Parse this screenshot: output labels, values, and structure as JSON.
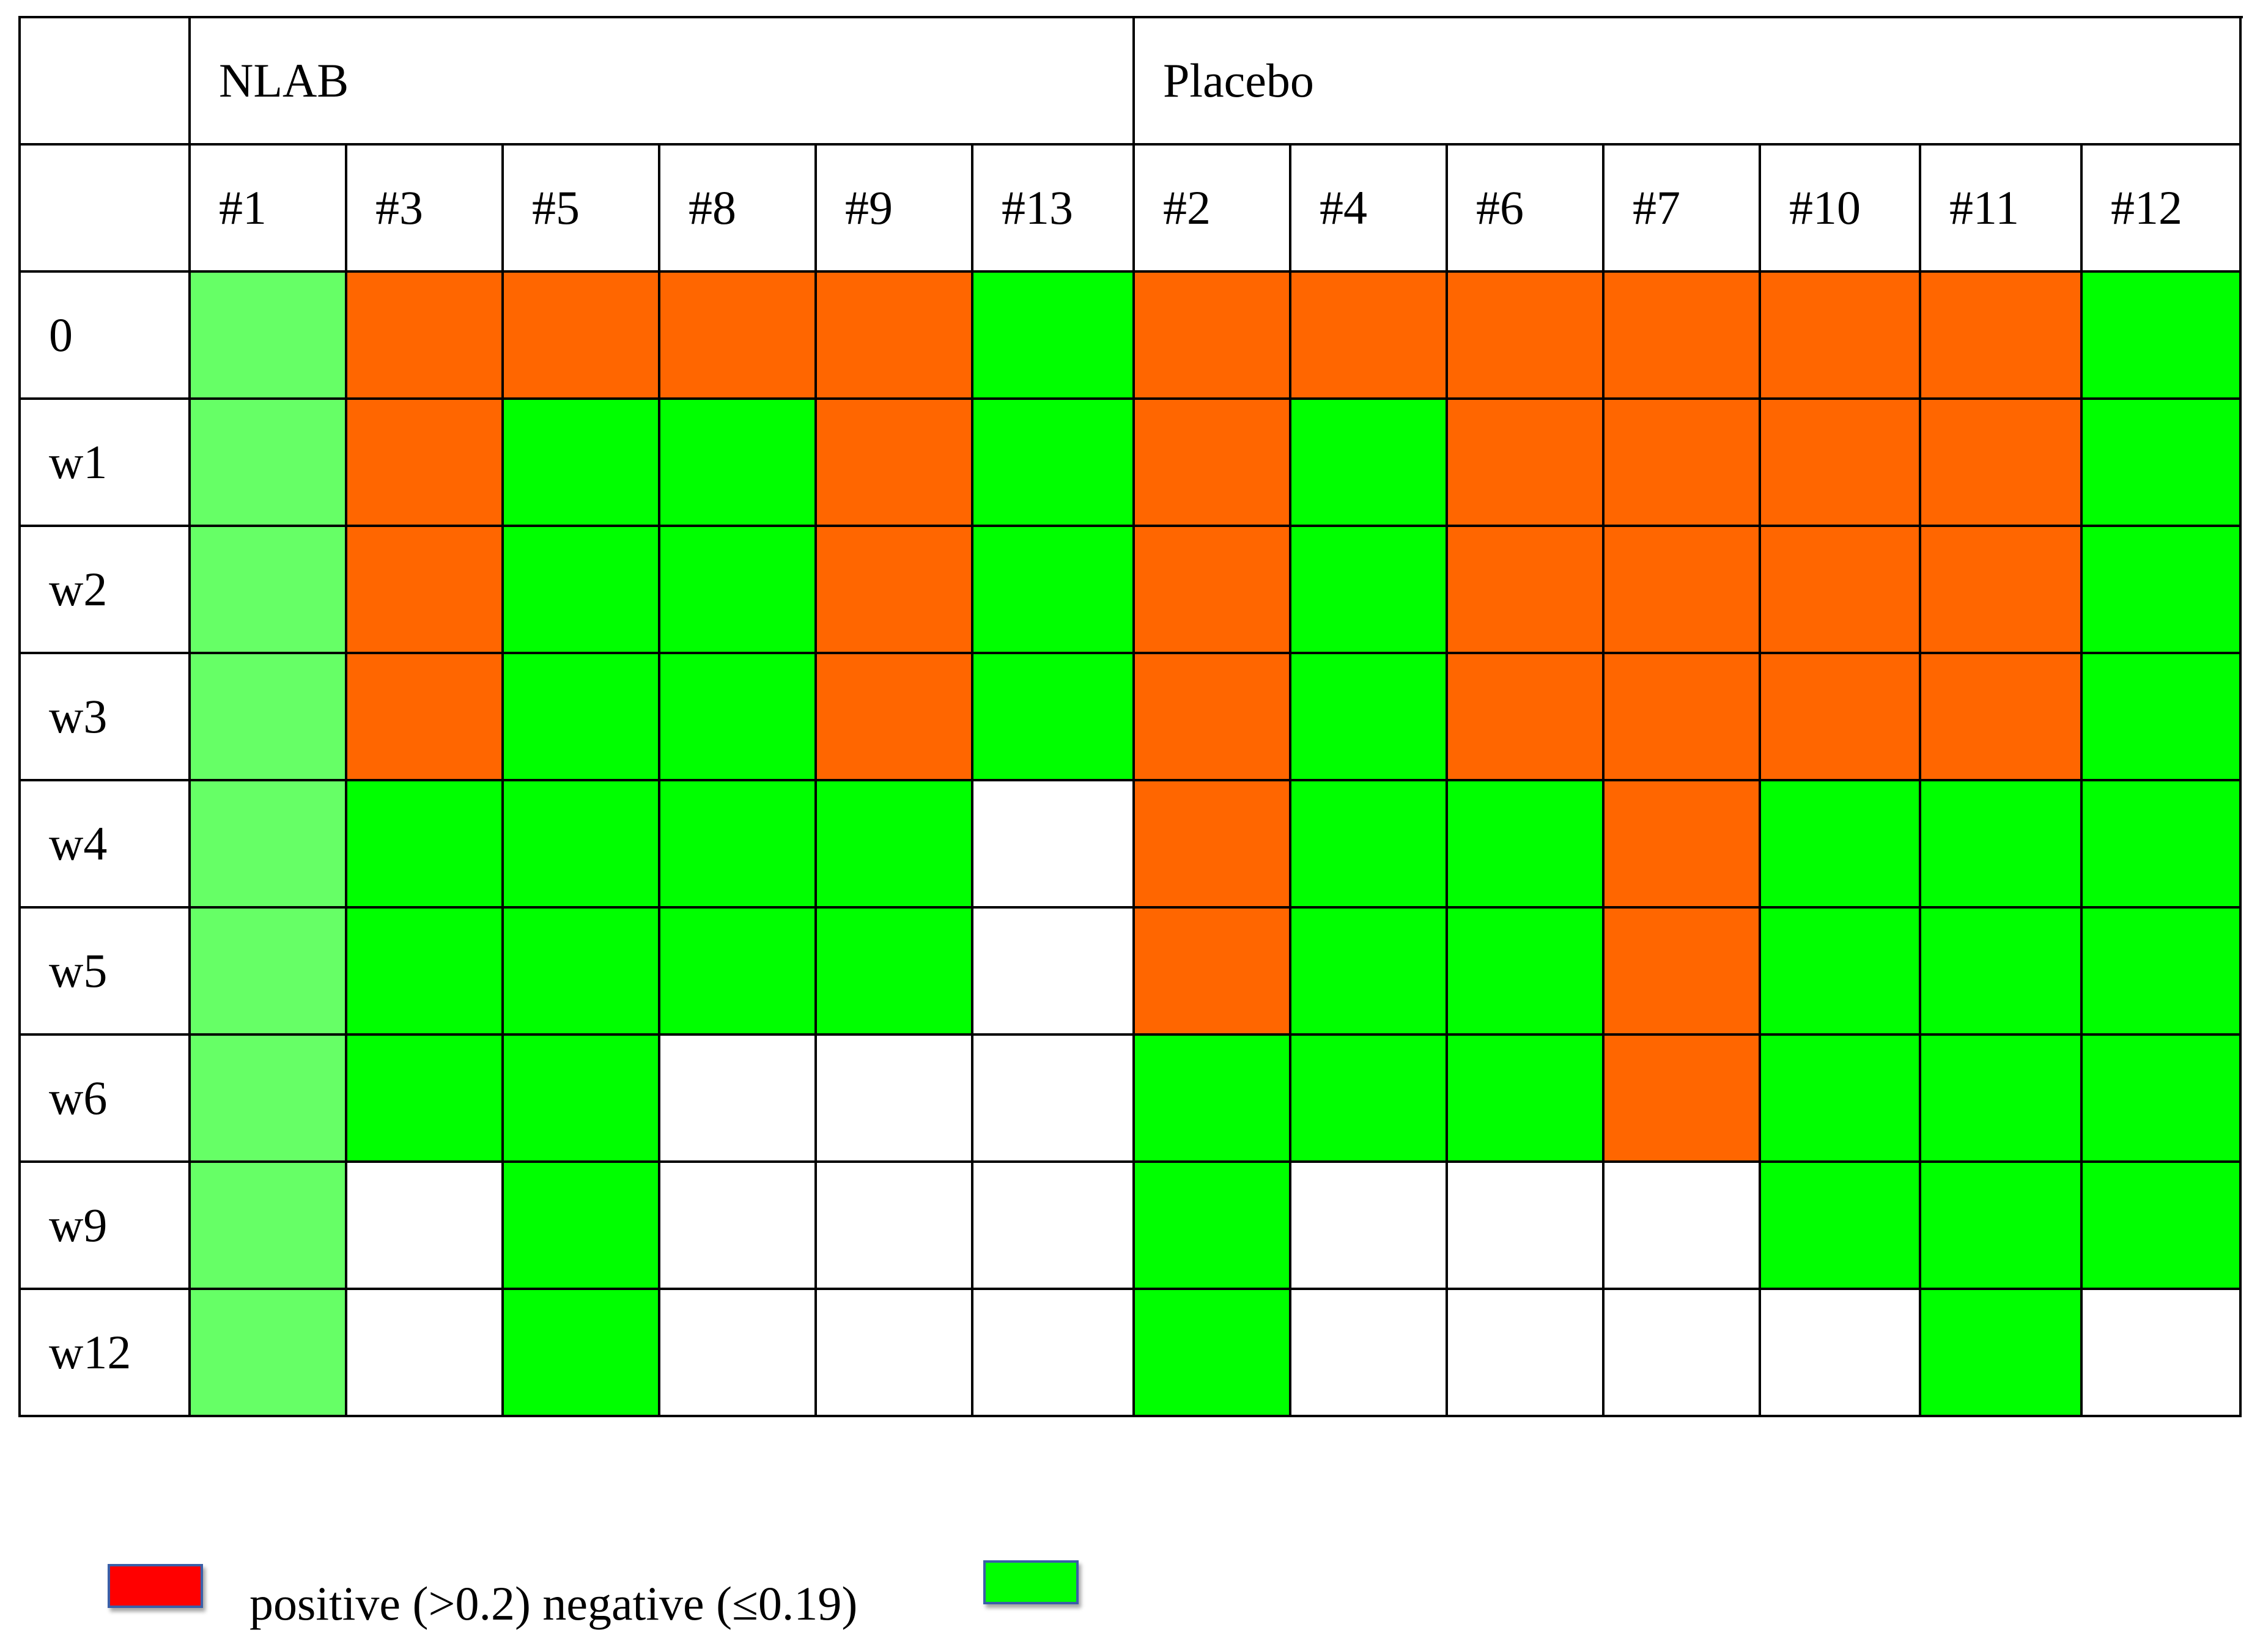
{
  "chart_data": {
    "type": "table",
    "title": "",
    "groups": [
      {
        "label": "NLAB",
        "subjects": [
          "#1",
          "#3",
          "#5",
          "#8",
          "#9",
          "#13"
        ]
      },
      {
        "label": "Placebo",
        "subjects": [
          "#2",
          "#4",
          "#6",
          "#7",
          "#10",
          "#11",
          "#12"
        ]
      }
    ],
    "rows": [
      {
        "label": "0",
        "cells": [
          "L",
          "P",
          "P",
          "P",
          "P",
          "N",
          "P",
          "P",
          "P",
          "P",
          "P",
          "P",
          "N"
        ]
      },
      {
        "label": "w1",
        "cells": [
          "L",
          "P",
          "N",
          "N",
          "P",
          "N",
          "P",
          "N",
          "P",
          "P",
          "P",
          "P",
          "N"
        ]
      },
      {
        "label": "w2",
        "cells": [
          "L",
          "P",
          "N",
          "N",
          "P",
          "N",
          "P",
          "N",
          "P",
          "P",
          "P",
          "P",
          "N"
        ]
      },
      {
        "label": "w3",
        "cells": [
          "L",
          "P",
          "N",
          "N",
          "P",
          "N",
          "P",
          "N",
          "P",
          "P",
          "P",
          "P",
          "N"
        ]
      },
      {
        "label": "w4",
        "cells": [
          "L",
          "N",
          "N",
          "N",
          "N",
          "E",
          "P",
          "N",
          "N",
          "P",
          "N",
          "N",
          "N"
        ]
      },
      {
        "label": "w5",
        "cells": [
          "L",
          "N",
          "N",
          "N",
          "N",
          "E",
          "P",
          "N",
          "N",
          "P",
          "N",
          "N",
          "N"
        ]
      },
      {
        "label": "w6",
        "cells": [
          "L",
          "N",
          "N",
          "E",
          "E",
          "E",
          "N",
          "N",
          "N",
          "P",
          "N",
          "N",
          "N"
        ]
      },
      {
        "label": "w9",
        "cells": [
          "L",
          "E",
          "N",
          "E",
          "E",
          "E",
          "N",
          "E",
          "E",
          "E",
          "N",
          "N",
          "N"
        ]
      },
      {
        "label": "w12",
        "cells": [
          "L",
          "E",
          "N",
          "E",
          "E",
          "E",
          "N",
          "E",
          "E",
          "E",
          "E",
          "N",
          "E"
        ]
      }
    ],
    "status_colors": {
      "P": "#ff6600",
      "N": "#00ff00",
      "L": "#66ff66",
      "E": "#ffffff"
    },
    "legend": {
      "text": "positive (>0.2) negative (≤0.19)",
      "positive_color": "#ff0000",
      "negative_color": "#00ff00"
    }
  }
}
